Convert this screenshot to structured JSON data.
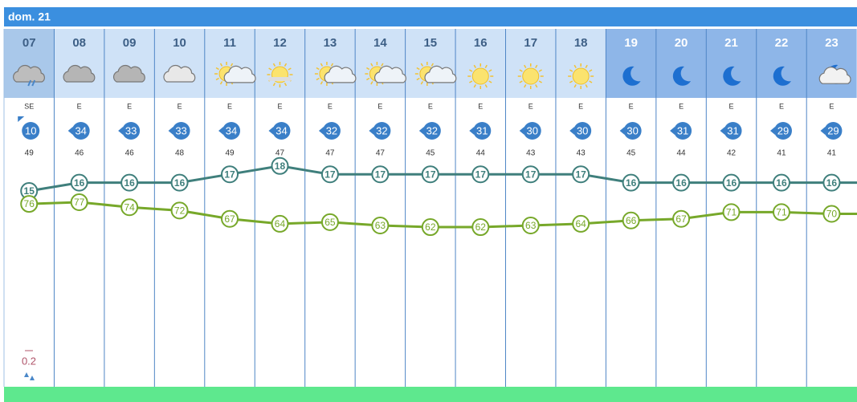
{
  "header": {
    "day": "dom. 21"
  },
  "hours": [
    {
      "hour": "07",
      "wind_dir": "SE",
      "wind_speed": 10,
      "pressure": 49,
      "temperature": 15,
      "humidity": 76
    },
    {
      "hour": "08",
      "wind_dir": "E",
      "wind_speed": 34,
      "pressure": 46,
      "temperature": 16,
      "humidity": 77
    },
    {
      "hour": "09",
      "wind_dir": "E",
      "wind_speed": 33,
      "pressure": 46,
      "temperature": 16,
      "humidity": 74
    },
    {
      "hour": "10",
      "wind_dir": "E",
      "wind_speed": 33,
      "pressure": 48,
      "temperature": 16,
      "humidity": 72
    },
    {
      "hour": "11",
      "wind_dir": "E",
      "wind_speed": 34,
      "pressure": 49,
      "temperature": 17,
      "humidity": 67
    },
    {
      "hour": "12",
      "wind_dir": "E",
      "wind_speed": 34,
      "pressure": 47,
      "temperature": 18,
      "humidity": 64
    },
    {
      "hour": "13",
      "wind_dir": "E",
      "wind_speed": 32,
      "pressure": 47,
      "temperature": 17,
      "humidity": 65
    },
    {
      "hour": "14",
      "wind_dir": "E",
      "wind_speed": 32,
      "pressure": 47,
      "temperature": 17,
      "humidity": 63
    },
    {
      "hour": "15",
      "wind_dir": "E",
      "wind_speed": 32,
      "pressure": 45,
      "temperature": 17,
      "humidity": 62
    },
    {
      "hour": "16",
      "wind_dir": "E",
      "wind_speed": 31,
      "pressure": 44,
      "temperature": 17,
      "humidity": 62
    },
    {
      "hour": "17",
      "wind_dir": "E",
      "wind_speed": 30,
      "pressure": 43,
      "temperature": 17,
      "humidity": 63
    },
    {
      "hour": "18",
      "wind_dir": "E",
      "wind_speed": 30,
      "pressure": 43,
      "temperature": 17,
      "humidity": 64
    },
    {
      "hour": "19",
      "wind_dir": "E",
      "wind_speed": 30,
      "pressure": 45,
      "temperature": 16,
      "humidity": 66
    },
    {
      "hour": "20",
      "wind_dir": "E",
      "wind_speed": 31,
      "pressure": 44,
      "temperature": 16,
      "humidity": 67
    },
    {
      "hour": "21",
      "wind_dir": "E",
      "wind_speed": 31,
      "pressure": 42,
      "temperature": 16,
      "humidity": 71
    },
    {
      "hour": "22",
      "wind_dir": "E",
      "wind_speed": 29,
      "pressure": 41,
      "temperature": 16,
      "humidity": 71
    },
    {
      "hour": "23",
      "wind_dir": "E",
      "wind_speed": 29,
      "pressure": 41,
      "temperature": 16,
      "humidity": 70
    }
  ],
  "precipitation": {
    "value": 0.2
  }
}
